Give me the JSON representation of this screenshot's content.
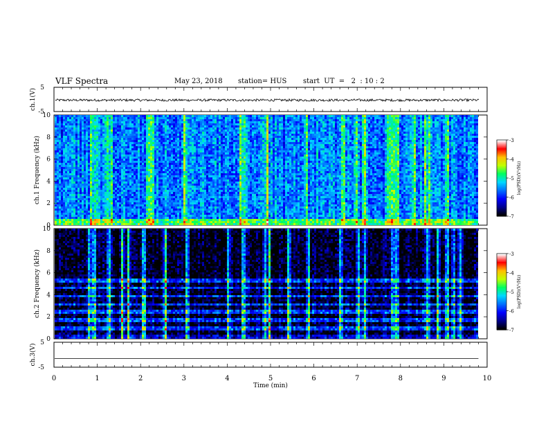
{
  "header": {
    "title": "VLF Spectra",
    "date": "May 23, 2018",
    "station": "station= HUS",
    "start": "start  UT  =   2  : 10 : 2"
  },
  "chart_data": [
    {
      "type": "line",
      "panel": "ch1-waveform",
      "ylabel": "ch.1(V)",
      "ylim": [
        -5,
        5
      ],
      "yticks": [
        "5",
        "-5"
      ],
      "xlim": [
        0,
        10
      ],
      "approx_level": -0.3,
      "approx_noise_amplitude": 1.0
    },
    {
      "type": "heatmap",
      "panel": "ch1-spectrogram",
      "ylabel": "ch.1 Frequency (kHz)",
      "ylim": [
        0,
        10
      ],
      "yticks": [
        "0",
        "2",
        "4",
        "6",
        "8",
        "10"
      ],
      "xlim": [
        0,
        9.8
      ],
      "colorbar": {
        "label": "log(PSD)(V²/Hz)",
        "range": [
          -7,
          -3
        ],
        "ticks": [
          "-3",
          "-4",
          "-5",
          "-6",
          "-7"
        ]
      },
      "background_level": -5.6,
      "bright_times_min": [
        0.85,
        0.95,
        1.2,
        1.3,
        2.15,
        2.25,
        3.0,
        4.3,
        4.35,
        4.9,
        5.8,
        6.65,
        6.95,
        7.15,
        7.7,
        7.8,
        7.9,
        8.3,
        8.55,
        8.65,
        9.05
      ]
    },
    {
      "type": "heatmap",
      "panel": "ch2-spectrogram",
      "ylabel": "ch.2 Frequency (kHz)",
      "ylim": [
        0,
        10
      ],
      "yticks": [
        "0",
        "2",
        "4",
        "6",
        "8",
        "10"
      ],
      "xlim": [
        0,
        9.8
      ],
      "colorbar": {
        "label": "log(PSD)(V²/Hz)",
        "range": [
          -7,
          -3
        ],
        "ticks": [
          "-3",
          "-4",
          "-5",
          "-6",
          "-7"
        ]
      },
      "background_level": -6.9,
      "horizontal_bands_khz": [
        0.9,
        1.7,
        2.4,
        3.1,
        3.9,
        4.6,
        5.3
      ],
      "bright_times_min": [
        0.8,
        0.9,
        1.25,
        1.55,
        1.7,
        2.05,
        2.55,
        3.05,
        4.0,
        4.35,
        4.85,
        4.95,
        5.4,
        5.85,
        6.6,
        7.0,
        7.15,
        7.8,
        7.9,
        8.6,
        8.85,
        9.05,
        9.2,
        9.35
      ]
    },
    {
      "type": "line",
      "panel": "ch3-waveform",
      "ylabel": "ch.3(V)",
      "ylim": [
        -5,
        5
      ],
      "yticks": [
        "5",
        "-5"
      ],
      "xlim": [
        0,
        9.8
      ],
      "level": -1.5
    }
  ],
  "xaxis": {
    "label": "Time  (min)",
    "ticks": [
      "0",
      "1",
      "2",
      "3",
      "4",
      "5",
      "6",
      "7",
      "8",
      "9",
      "10"
    ]
  },
  "colors": {
    "colormap": [
      "#000000",
      "#00008f",
      "#0000ff",
      "#0070ff",
      "#00d8ff",
      "#00ff60",
      "#c0ff00",
      "#ffc000",
      "#ff0000",
      "#ffffff"
    ]
  }
}
